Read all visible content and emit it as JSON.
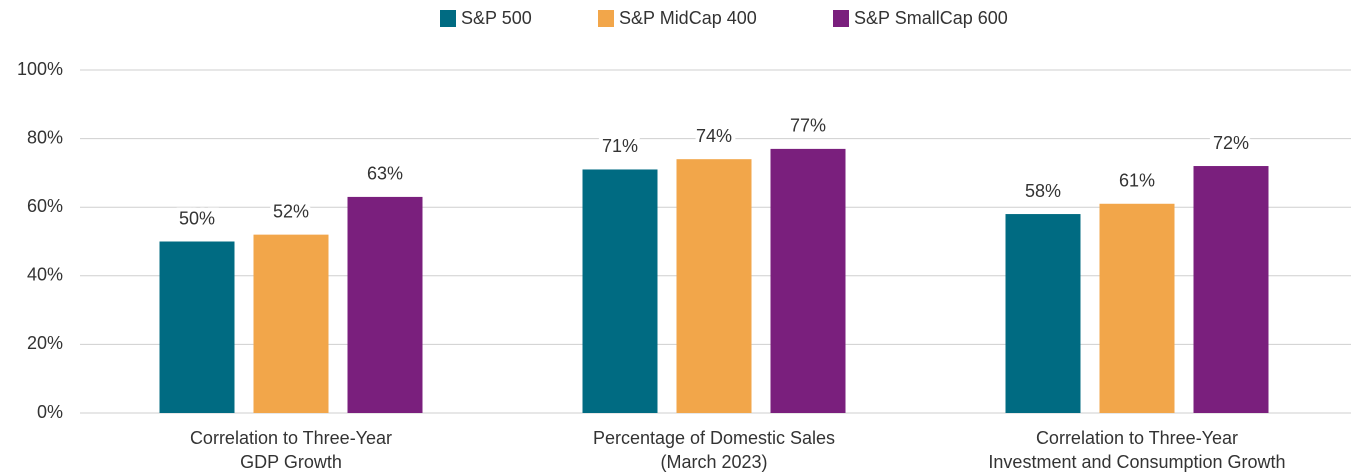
{
  "chart_data": {
    "type": "bar",
    "categories": [
      "Correlation to Three-Year\nGDP Growth",
      "Percentage of Domestic Sales\n(March 2023)",
      "Correlation to Three-Year\nInvestment and Consumption Growth"
    ],
    "series": [
      {
        "name": "S&P 500",
        "color": "#006b82",
        "values": [
          50,
          71,
          58
        ],
        "value_labels": [
          "50%",
          "71%",
          "58%"
        ]
      },
      {
        "name": "S&P MidCap 400",
        "color": "#f2a64a",
        "values": [
          52,
          74,
          61
        ],
        "value_labels": [
          "52%",
          "74%",
          "61%"
        ]
      },
      {
        "name": "S&P SmallCap 600",
        "color": "#7a1f7d",
        "values": [
          63,
          77,
          72
        ],
        "value_labels": [
          "63%",
          "77%",
          "72%"
        ]
      }
    ],
    "ylim": [
      0,
      100
    ],
    "yticks": [
      {
        "value": 0,
        "label": "0%"
      },
      {
        "value": 20,
        "label": "20%"
      },
      {
        "value": 40,
        "label": "40%"
      },
      {
        "value": 60,
        "label": "60%"
      },
      {
        "value": 80,
        "label": "80%"
      },
      {
        "value": 100,
        "label": "100%"
      }
    ],
    "grid": true,
    "legend": "top"
  }
}
